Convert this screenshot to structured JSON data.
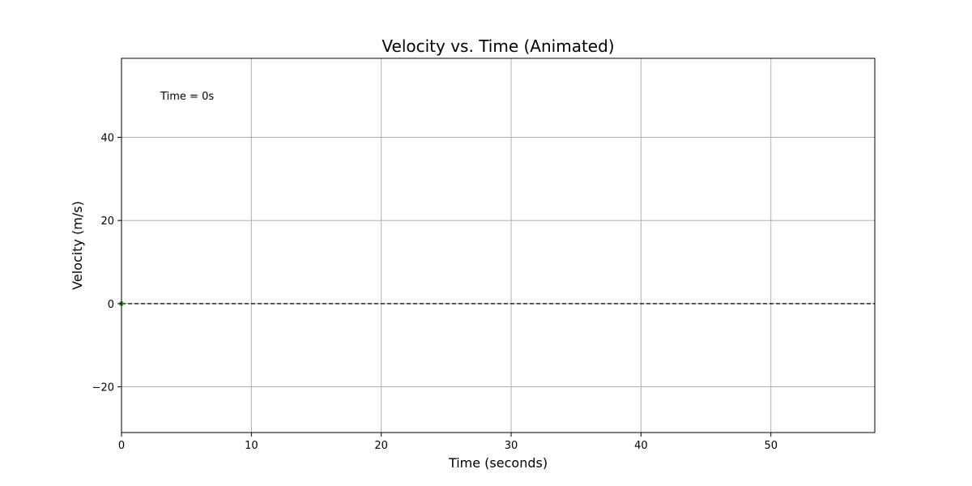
{
  "chart_data": {
    "type": "line",
    "title": "Velocity vs. Time (Animated)",
    "xlabel": "Time (seconds)",
    "ylabel": "Velocity (m/s)",
    "xlim": [
      0,
      58
    ],
    "ylim": [
      -31,
      59
    ],
    "x_ticks": [
      0,
      10,
      20,
      30,
      40,
      50
    ],
    "y_ticks": [
      -20,
      0,
      20,
      40
    ],
    "grid": true,
    "legend": "none",
    "annotation": {
      "text": "Time = 0s",
      "x": 3,
      "y": 50
    },
    "reference_line": {
      "y": 0,
      "style": "dashed",
      "color": "#000000"
    },
    "series": [
      {
        "x": [
          0
        ],
        "y": [
          0
        ],
        "color": "#2ca02c"
      }
    ]
  }
}
